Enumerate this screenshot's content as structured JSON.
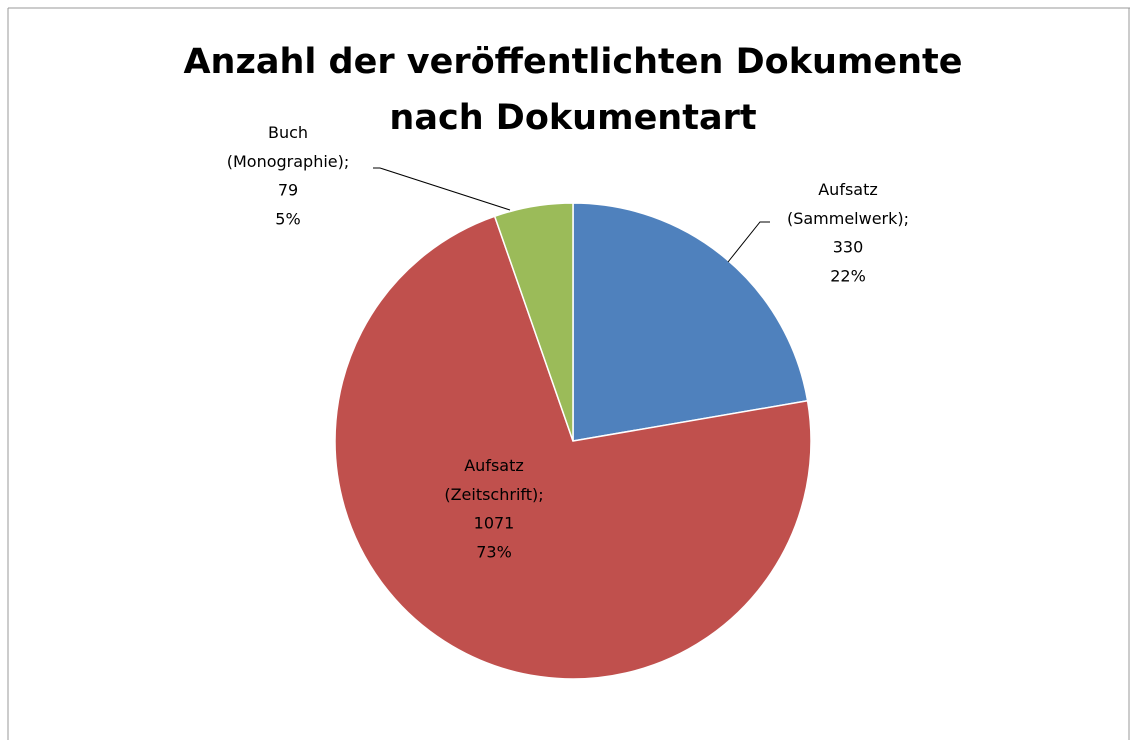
{
  "chart_data": {
    "type": "pie",
    "title": "Anzahl der veröffentlichten Dokumente nach Dokumentart",
    "categories": [
      "Aufsatz (Sammelwerk);",
      "Aufsatz (Zeitschrift);",
      "Buch (Monographie);"
    ],
    "values": [
      330,
      1071,
      79
    ],
    "percents": [
      22,
      73,
      5
    ],
    "percent_labels": [
      "22%",
      "73%",
      "5%"
    ],
    "colors": [
      "#4f81bd",
      "#c0504d",
      "#9bbb59"
    ]
  }
}
